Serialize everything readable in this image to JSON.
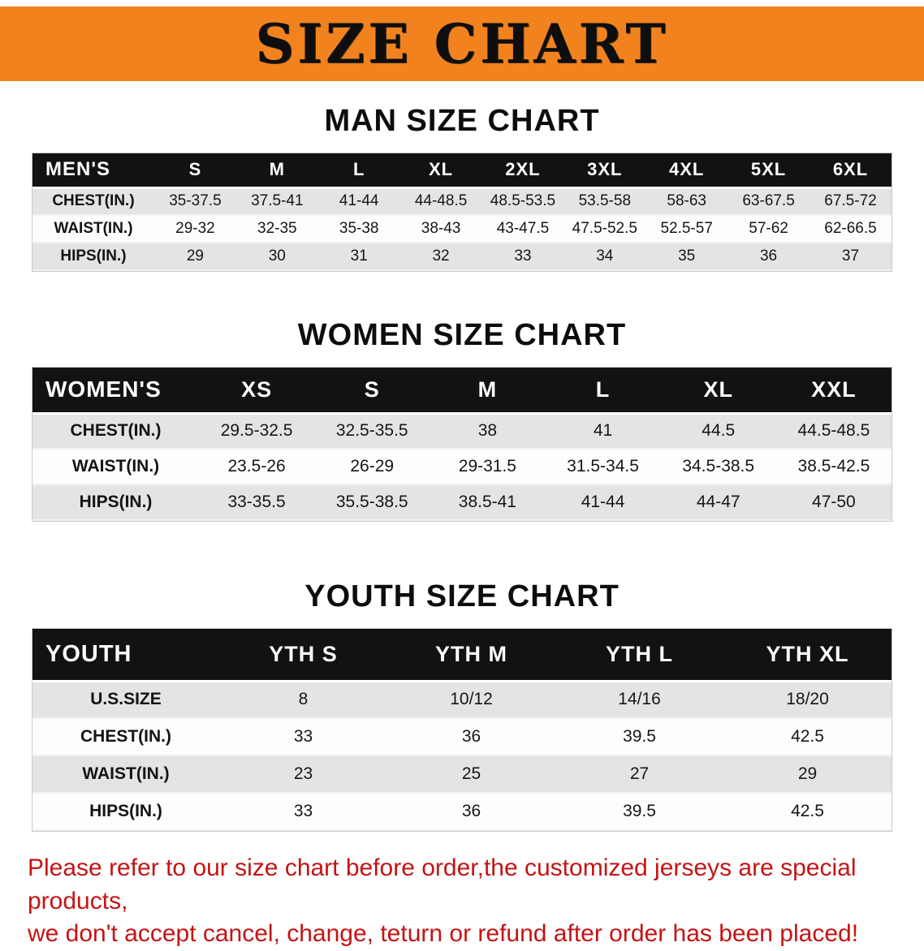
{
  "banner": {
    "title": "SIZE CHART",
    "bg_color": "#f2821e"
  },
  "sections": [
    {
      "heading": "MAN SIZE CHART",
      "table": {
        "header": [
          "MEN'S",
          "S",
          "M",
          "L",
          "XL",
          "2XL",
          "3XL",
          "4XL",
          "5XL",
          "6XL"
        ],
        "rows": [
          [
            "CHEST(IN.)",
            "35-37.5",
            "37.5-41",
            "41-44",
            "44-48.5",
            "48.5-53.5",
            "53.5-58",
            "58-63",
            "63-67.5",
            "67.5-72"
          ],
          [
            "WAIST(IN.)",
            "29-32",
            "32-35",
            "35-38",
            "38-43",
            "43-47.5",
            "47.5-52.5",
            "52.5-57",
            "57-62",
            "62-66.5"
          ],
          [
            "HIPS(IN.)",
            "29",
            "30",
            "31",
            "32",
            "33",
            "34",
            "35",
            "36",
            "37"
          ]
        ]
      }
    },
    {
      "heading": "WOMEN SIZE CHART",
      "table": {
        "header": [
          "WOMEN'S",
          "XS",
          "S",
          "M",
          "L",
          "XL",
          "XXL"
        ],
        "rows": [
          [
            "CHEST(IN.)",
            "29.5-32.5",
            "32.5-35.5",
            "38",
            "41",
            "44.5",
            "44.5-48.5"
          ],
          [
            "WAIST(IN.)",
            "23.5-26",
            "26-29",
            "29-31.5",
            "31.5-34.5",
            "34.5-38.5",
            "38.5-42.5"
          ],
          [
            "HIPS(IN.)",
            "33-35.5",
            "35.5-38.5",
            "38.5-41",
            "41-44",
            "44-47",
            "47-50"
          ]
        ]
      }
    },
    {
      "heading": "YOUTH SIZE CHART",
      "table": {
        "header": [
          "YOUTH",
          "YTH S",
          "YTH M",
          "YTH L",
          "YTH XL"
        ],
        "rows": [
          [
            "U.S.SIZE",
            "8",
            "10/12",
            "14/16",
            "18/20"
          ],
          [
            "CHEST(IN.)",
            "33",
            "36",
            "39.5",
            "42.5"
          ],
          [
            "WAIST(IN.)",
            "23",
            "25",
            "27",
            "29"
          ],
          [
            "HIPS(IN.)",
            "33",
            "36",
            "39.5",
            "42.5"
          ]
        ]
      }
    }
  ],
  "footer": {
    "line1": "Please refer to our size chart before order,the customized jerseys are special products,",
    "line2": "we don't accept cancel, change, teturn or refund after order has been placed!",
    "text_color": "#c41414"
  }
}
